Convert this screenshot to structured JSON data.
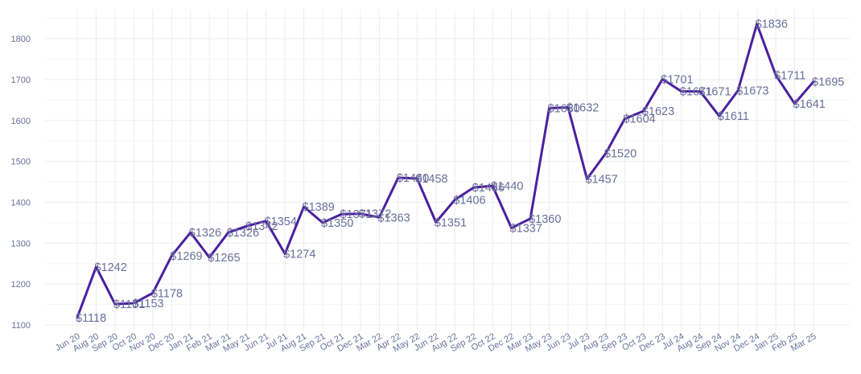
{
  "chart_data": {
    "type": "line",
    "title": "",
    "xlabel": "",
    "ylabel": "",
    "ylim": [
      1080,
      1850
    ],
    "yticks": [
      1100,
      1200,
      1300,
      1400,
      1500,
      1600,
      1700,
      1800
    ],
    "grid": true,
    "legend": "none",
    "line_color": "#4b1fa0",
    "label_prefix": "$",
    "categories": [
      "Jun 20",
      "Aug 20",
      "Sep 20",
      "Oct 20",
      "Nov 20",
      "Dec 20",
      "Jan 21",
      "Feb 21",
      "Mar 21",
      "May 21",
      "Jun 21",
      "Jul 21",
      "Aug 21",
      "Sep 21",
      "Oct 21",
      "Dec 21",
      "Mar 22",
      "Apr 22",
      "May 22",
      "Jun 22",
      "Aug 22",
      "Sep 22",
      "Oct 22",
      "Dec 22",
      "Mar 23",
      "May 23",
      "Jun 23",
      "Jul 23",
      "Aug 23",
      "Sep 23",
      "Oct 23",
      "Dec 23",
      "Jul 24",
      "Aug 24",
      "Sep 24",
      "Nov 24",
      "Dec 24",
      "Jan 25",
      "Feb 25",
      "Mar 25"
    ],
    "series": [
      {
        "values": [
          1118,
          1242,
          1151,
          1153,
          1178,
          1269,
          1326,
          1265,
          1326,
          1342,
          1354,
          1274,
          1389,
          1350,
          1371,
          1372,
          1363,
          1460,
          1458,
          1351,
          1406,
          1436,
          1440,
          1337,
          1360,
          1630,
          1632,
          1457,
          1520,
          1604,
          1623,
          1701,
          1671,
          1671,
          1611,
          1673,
          1836,
          1711,
          1641,
          1695
        ]
      }
    ],
    "data_labels": [
      "$1118",
      "$1242",
      "$1151",
      "$1153",
      "$1178",
      "$1269",
      "$1326",
      "$1265",
      "$1326",
      "$1342",
      "$1354",
      "$1274",
      "$1389",
      "$1350",
      "$1371",
      "$1372",
      "$1363",
      "$1460",
      "$1458",
      "$1351",
      "$1406",
      "$1436",
      "$1440",
      "$1337",
      "$1360",
      "$1630",
      "$1632",
      "$1457",
      "$1520",
      "$1604",
      "$1623",
      "$1701",
      "$1671",
      "$1671",
      "$1611",
      "$1673",
      "$1836",
      "$1711",
      "$1641",
      "$1695"
    ]
  }
}
